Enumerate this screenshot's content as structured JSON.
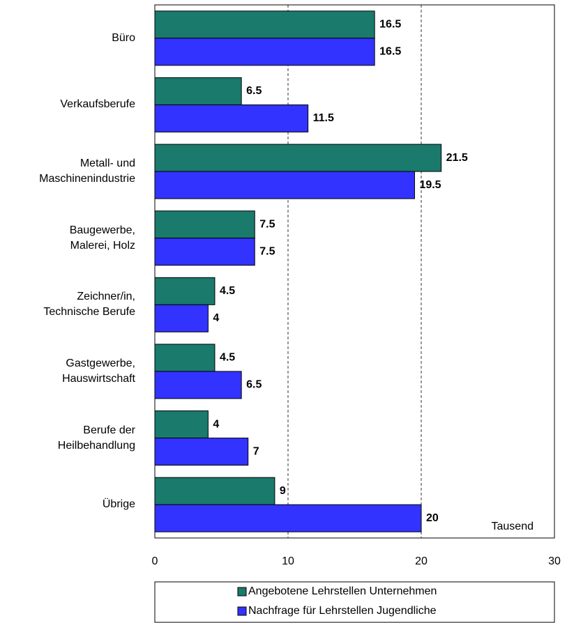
{
  "chart_data": {
    "type": "hbar",
    "categories": [
      "Büro",
      "Verkaufsberufe",
      "Metall- und\nMaschinenindustrie",
      "Baugewerbe,\nMalerei, Holz",
      "Zeichner/in,\nTechnische Berufe",
      "Gastgewerbe,\nHauswirtschaft",
      "Berufe der\nHeilbehandlung",
      "Übrige"
    ],
    "series": [
      {
        "name": "Angebotene Lehrstellen Unternehmen",
        "color": "#1a7a6c",
        "values": [
          16.5,
          6.5,
          21.5,
          7.5,
          4.5,
          4.5,
          4,
          9
        ]
      },
      {
        "name": "Nachfrage für Lehrstellen Jugendliche",
        "color": "#3333ff",
        "values": [
          16.5,
          11.5,
          19.5,
          7.5,
          4,
          6.5,
          7,
          20
        ]
      }
    ],
    "xlim": [
      0,
      30
    ],
    "xticks": [
      0,
      10,
      20,
      30
    ],
    "grid": true,
    "annotation": "Tausend",
    "legend": "bottom"
  }
}
